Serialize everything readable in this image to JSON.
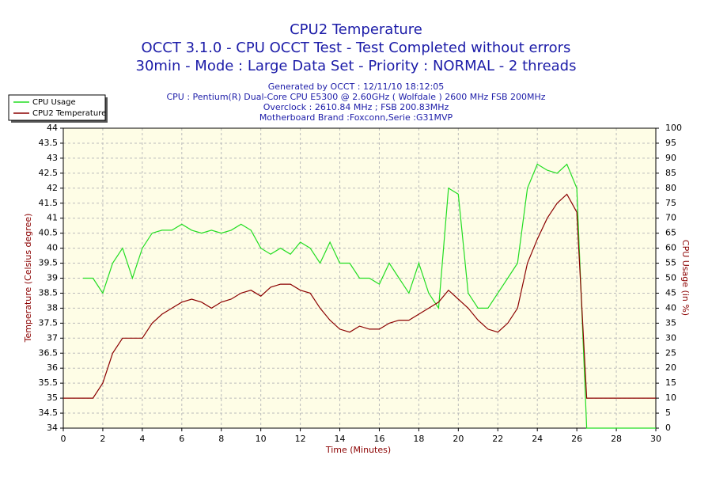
{
  "chart_data": {
    "type": "line",
    "title": "CPU2 Temperature",
    "subtitles": [
      "OCCT 3.1.0 - CPU OCCT Test - Test Completed without errors",
      "30min - Mode : Large Data Set - Priority : NORMAL - 2 threads"
    ],
    "annotations": [
      "Generated by OCCT : 12/11/10 18:12:05",
      "CPU : Pentium(R) Dual-Core CPU E5300 @ 2.60GHz ( Wolfdale ) 2600 MHz FSB 200MHz",
      "Overclock : 2610.84 MHz ; FSB 200.83MHz",
      "Motherboard Brand :Foxconn,Serie :G31MVP"
    ],
    "xlabel": "Time (Minutes)",
    "ylabel": "Temperature (Celsius degree)",
    "y2label": "CPU Usage (in %)",
    "legend": "top-left",
    "grid": true,
    "xlim": [
      0,
      30
    ],
    "xticks": [
      0,
      2,
      4,
      6,
      8,
      10,
      12,
      14,
      16,
      18,
      20,
      22,
      24,
      26,
      28,
      30
    ],
    "ylim": [
      34,
      44
    ],
    "yticks": [
      34,
      34.5,
      35,
      35.5,
      36,
      36.5,
      37,
      37.5,
      38,
      38.5,
      39,
      39.5,
      40,
      40.5,
      41,
      41.5,
      42,
      42.5,
      43,
      43.5,
      44
    ],
    "y2lim": [
      0,
      100
    ],
    "y2ticks": [
      0,
      5,
      10,
      15,
      20,
      25,
      30,
      35,
      40,
      45,
      50,
      55,
      60,
      65,
      70,
      75,
      80,
      85,
      90,
      95,
      100
    ],
    "x": [
      0,
      0.5,
      1,
      1.5,
      2,
      2.5,
      3,
      3.5,
      4,
      4.5,
      5,
      5.5,
      6,
      6.5,
      7,
      7.5,
      8,
      8.5,
      9,
      9.5,
      10,
      10.5,
      11,
      11.5,
      12,
      12.5,
      13,
      13.5,
      14,
      14.5,
      15,
      15.5,
      16,
      16.5,
      17,
      17.5,
      18,
      18.5,
      19,
      19.5,
      20,
      20.5,
      21,
      21.5,
      22,
      22.5,
      23,
      23.5,
      24,
      24.5,
      25,
      25.5,
      26,
      26.5,
      27,
      27.5,
      28,
      28.5,
      29,
      29.5,
      30
    ],
    "series": [
      {
        "name": "CPU Usage",
        "color": "#22dd22",
        "axis": "y2",
        "values": [
          null,
          null,
          50,
          50,
          45,
          55,
          60,
          50,
          60,
          65,
          66,
          66,
          68,
          66,
          65,
          66,
          65,
          66,
          68,
          66,
          60,
          58,
          60,
          58,
          62,
          60,
          55,
          62,
          55,
          55,
          50,
          50,
          48,
          55,
          50,
          45,
          55,
          45,
          40,
          80,
          78,
          45,
          40,
          40,
          45,
          50,
          55,
          80,
          88,
          86,
          85,
          88,
          80,
          0,
          0,
          0,
          0,
          0,
          0,
          0,
          0
        ]
      },
      {
        "name": "CPU2 Temperature",
        "color": "#8b0000",
        "values": [
          35,
          35,
          35,
          35,
          35.5,
          36.5,
          37,
          37,
          37,
          37.5,
          37.8,
          38,
          38.2,
          38.3,
          38.2,
          38,
          38.2,
          38.3,
          38.5,
          38.6,
          38.4,
          38.7,
          38.8,
          38.8,
          38.6,
          38.5,
          38,
          37.6,
          37.3,
          37.2,
          37.4,
          37.3,
          37.3,
          37.5,
          37.6,
          37.6,
          37.8,
          38,
          38.2,
          38.6,
          38.3,
          38,
          37.6,
          37.3,
          37.2,
          37.5,
          38,
          39.5,
          40.3,
          41,
          41.5,
          41.8,
          41.2,
          35,
          35,
          35,
          35,
          35,
          35,
          35,
          35
        ]
      }
    ]
  }
}
